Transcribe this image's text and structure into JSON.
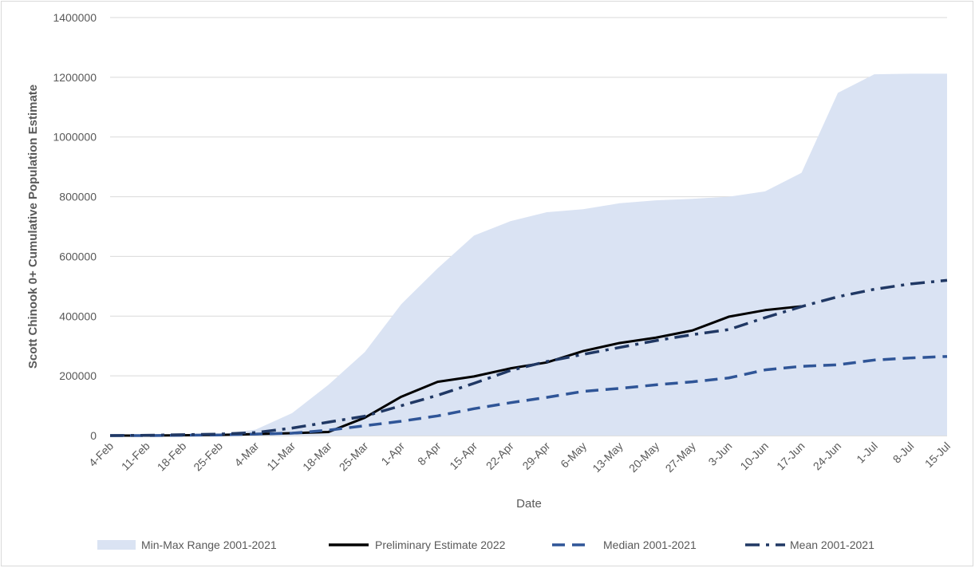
{
  "chart_data": {
    "type": "line",
    "xlabel": "Date",
    "ylabel": "Scott Chinook 0+ Cumulative Population Estimate",
    "ylim": [
      0,
      1400000
    ],
    "yticks": [
      0,
      200000,
      400000,
      600000,
      800000,
      1000000,
      1200000,
      1400000
    ],
    "grid": true,
    "legend_position": "bottom",
    "categories": [
      "4-Feb",
      "11-Feb",
      "18-Feb",
      "25-Feb",
      "4-Mar",
      "11-Mar",
      "18-Mar",
      "25-Mar",
      "1-Apr",
      "8-Apr",
      "15-Apr",
      "22-Apr",
      "29-Apr",
      "6-May",
      "13-May",
      "20-May",
      "27-May",
      "3-Jun",
      "10-Jun",
      "17-Jun",
      "24-Jun",
      "1-Jul",
      "8-Jul",
      "15-Jul"
    ],
    "series": [
      {
        "name": "Min-Max Range 2001-2021",
        "style": "area",
        "color": "#dae3f3",
        "lower": [
          0,
          0,
          0,
          0,
          0,
          0,
          0,
          0,
          0,
          0,
          0,
          0,
          0,
          0,
          0,
          0,
          0,
          0,
          0,
          0,
          0,
          0,
          0,
          0
        ],
        "upper": [
          0,
          0,
          2000,
          5000,
          20000,
          75000,
          170000,
          280000,
          440000,
          560000,
          670000,
          718000,
          748000,
          758000,
          778000,
          788000,
          793000,
          800000,
          818000,
          880000,
          1148000,
          1210000,
          1212000,
          1212000
        ]
      },
      {
        "name": "Preliminary Estimate 2022",
        "style": "solid",
        "color": "#000000",
        "values": [
          0,
          0,
          1000,
          2000,
          5000,
          8000,
          12000,
          60000,
          130000,
          180000,
          198000,
          225000,
          245000,
          283000,
          310000,
          328000,
          352000,
          398000,
          420000,
          433000,
          null,
          null,
          null,
          null
        ]
      },
      {
        "name": "Median 2001-2021",
        "style": "dashed",
        "color": "#2f5597",
        "values": [
          0,
          0,
          1000,
          2000,
          5000,
          8000,
          18000,
          33000,
          48000,
          66000,
          90000,
          110000,
          128000,
          148000,
          158000,
          170000,
          180000,
          193000,
          220000,
          232000,
          237000,
          253000,
          260000,
          265000
        ]
      },
      {
        "name": "Mean 2001-2021",
        "style": "dashdot",
        "color": "#203864",
        "values": [
          0,
          1000,
          3000,
          5000,
          10000,
          25000,
          45000,
          65000,
          100000,
          135000,
          175000,
          218000,
          248000,
          272000,
          295000,
          318000,
          338000,
          355000,
          395000,
          432000,
          465000,
          490000,
          508000,
          520000
        ]
      }
    ]
  }
}
